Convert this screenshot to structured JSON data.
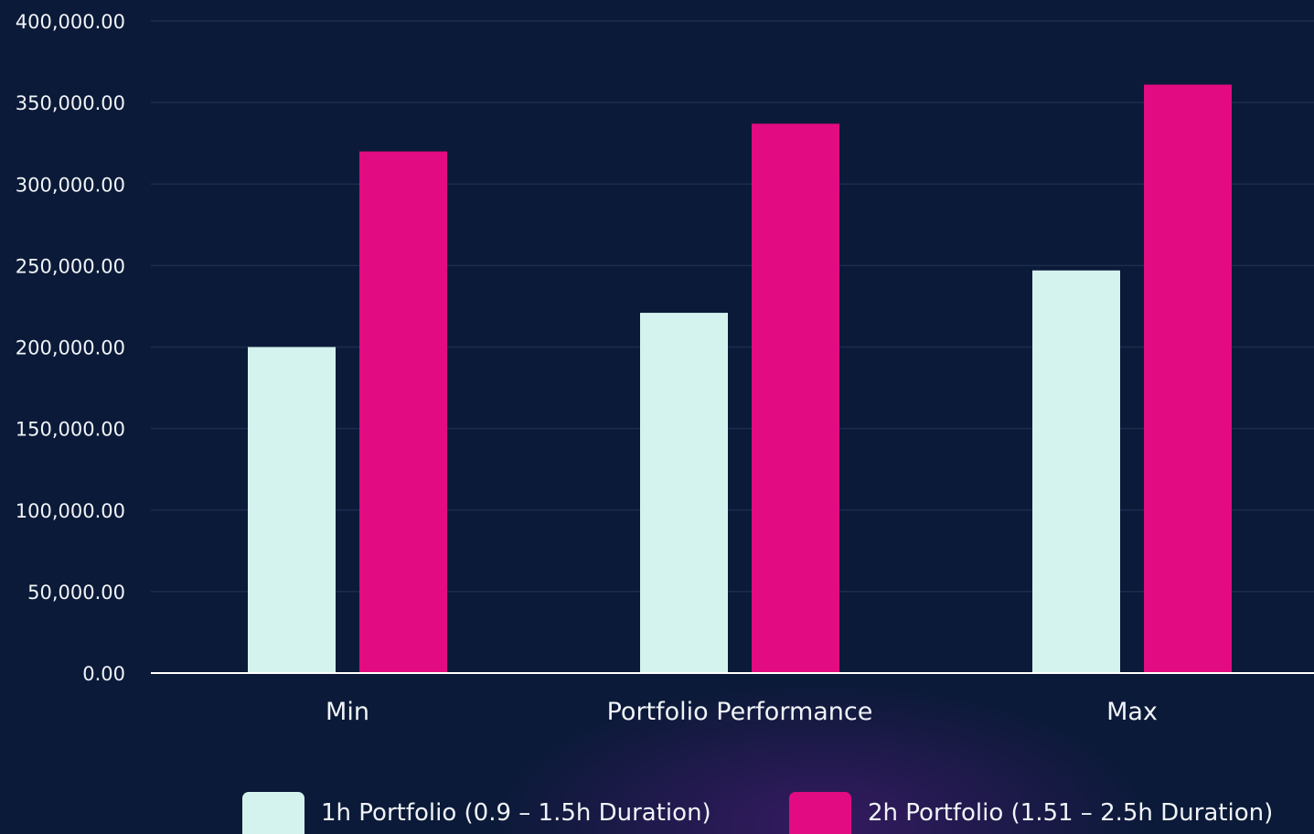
{
  "chart_data": {
    "type": "bar",
    "categories": [
      "Min",
      "Portfolio Performance",
      "Max"
    ],
    "series": [
      {
        "name": "1h Portfolio (0.9 – 1.5h Duration)",
        "values": [
          200000,
          221000,
          247000
        ],
        "color": "#d5f3ee"
      },
      {
        "name": "2h Portfolio (1.51 – 2.5h Duration)",
        "values": [
          320000,
          337000,
          361000
        ],
        "color": "#e20b81"
      }
    ],
    "ylim": [
      0,
      400000
    ],
    "yticks": [
      "0.00",
      "50,000.00",
      "100,000.00",
      "150,000.00",
      "200,000.00",
      "250,000.00",
      "300,000.00",
      "350,000.00",
      "400,000.00"
    ],
    "grid": true,
    "legend_position": "bottom",
    "colors": {
      "background": "#0b1a38",
      "gridline": "#1c2c4f",
      "axis": "#ffffff",
      "text": "#f1f4f8"
    }
  }
}
